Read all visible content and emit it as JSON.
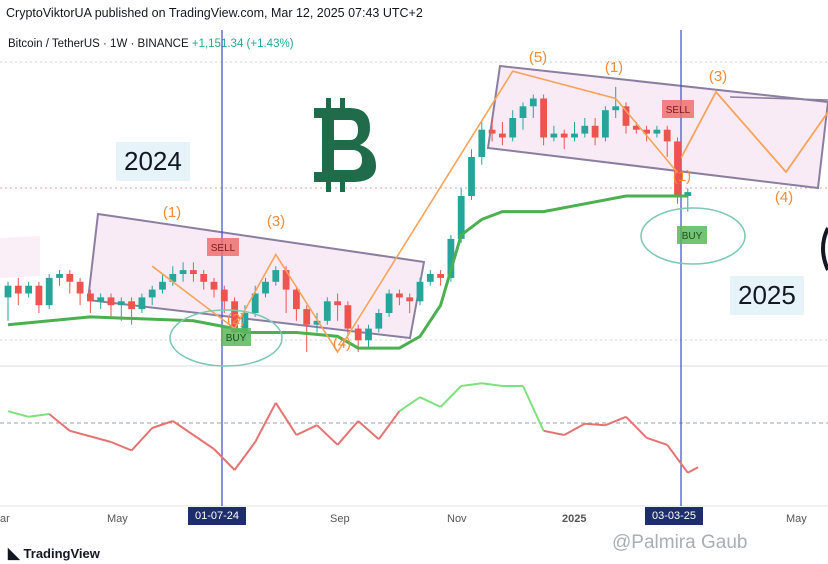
{
  "header": {
    "published": "CryptoViktorUA published on TradingView.com, Mar 12, 2025 07:43 UTC+2",
    "symbol": "Bitcoin / TetherUS · 1W · BINANCE",
    "change": "+1,151.34 (+1.43%)"
  },
  "annotations": {
    "year_2024": "2024",
    "year_2025": "2025",
    "sell_label": "SELL",
    "buy_label": "BUY",
    "wave_1": "(1)",
    "wave_2": "(2)",
    "wave_3": "(3)",
    "wave_4": "(4)",
    "wave_5": "(5)"
  },
  "time_axis": {
    "labels": [
      "ar",
      "May",
      "Sep",
      "Nov",
      "2025",
      "May"
    ],
    "marker_left": "01-07-24",
    "marker_right": "03-03-25"
  },
  "footer": {
    "brand": "TradingView",
    "watermark": "@Palmira Gaub"
  },
  "colors": {
    "up": "#26a69a",
    "down": "#ef5350",
    "trend": "#4caf50",
    "wave": "#f7a35c",
    "channel": "#9c8cb4",
    "marker": "#3b4bd1",
    "bitcoin": "#1f6b4a"
  },
  "chart_data": {
    "type": "candlestick",
    "price_units": "relative",
    "candles": [
      {
        "o": 54,
        "c": 57,
        "h": 58,
        "l": 48
      },
      {
        "o": 57,
        "c": 55,
        "h": 59,
        "l": 52
      },
      {
        "o": 55,
        "c": 57,
        "h": 58,
        "l": 54
      },
      {
        "o": 57,
        "c": 52,
        "h": 58,
        "l": 50
      },
      {
        "o": 52,
        "c": 59,
        "h": 60,
        "l": 51
      },
      {
        "o": 59,
        "c": 60,
        "h": 61,
        "l": 57
      },
      {
        "o": 60,
        "c": 58,
        "h": 61,
        "l": 55
      },
      {
        "o": 58,
        "c": 55,
        "h": 59,
        "l": 52
      },
      {
        "o": 55,
        "c": 53,
        "h": 56,
        "l": 50
      },
      {
        "o": 53,
        "c": 54,
        "h": 55,
        "l": 51
      },
      {
        "o": 54,
        "c": 52,
        "h": 55,
        "l": 49
      },
      {
        "o": 52,
        "c": 53,
        "h": 54,
        "l": 48
      },
      {
        "o": 53,
        "c": 51,
        "h": 54,
        "l": 47
      },
      {
        "o": 51,
        "c": 54,
        "h": 55,
        "l": 50
      },
      {
        "o": 54,
        "c": 56,
        "h": 57,
        "l": 52
      },
      {
        "o": 56,
        "c": 58,
        "h": 60,
        "l": 55
      },
      {
        "o": 58,
        "c": 60,
        "h": 62,
        "l": 57
      },
      {
        "o": 60,
        "c": 61,
        "h": 63,
        "l": 58
      },
      {
        "o": 61,
        "c": 60,
        "h": 63,
        "l": 58
      },
      {
        "o": 60,
        "c": 58,
        "h": 61,
        "l": 56
      },
      {
        "o": 58,
        "c": 56,
        "h": 59,
        "l": 54
      },
      {
        "o": 56,
        "c": 53,
        "h": 57,
        "l": 50
      },
      {
        "o": 53,
        "c": 45,
        "h": 54,
        "l": 42
      },
      {
        "o": 45,
        "c": 50,
        "h": 52,
        "l": 43
      },
      {
        "o": 50,
        "c": 55,
        "h": 57,
        "l": 49
      },
      {
        "o": 55,
        "c": 58,
        "h": 59,
        "l": 54
      },
      {
        "o": 58,
        "c": 61,
        "h": 62,
        "l": 57
      },
      {
        "o": 61,
        "c": 56,
        "h": 62,
        "l": 50
      },
      {
        "o": 56,
        "c": 51,
        "h": 57,
        "l": 48
      },
      {
        "o": 51,
        "c": 47,
        "h": 52,
        "l": 40
      },
      {
        "o": 47,
        "c": 48,
        "h": 50,
        "l": 45
      },
      {
        "o": 48,
        "c": 53,
        "h": 54,
        "l": 47
      },
      {
        "o": 53,
        "c": 52,
        "h": 55,
        "l": 48
      },
      {
        "o": 52,
        "c": 46,
        "h": 53,
        "l": 44
      },
      {
        "o": 46,
        "c": 43,
        "h": 47,
        "l": 40
      },
      {
        "o": 43,
        "c": 46,
        "h": 47,
        "l": 41
      },
      {
        "o": 46,
        "c": 50,
        "h": 51,
        "l": 45
      },
      {
        "o": 50,
        "c": 55,
        "h": 56,
        "l": 49
      },
      {
        "o": 55,
        "c": 54,
        "h": 56,
        "l": 52
      },
      {
        "o": 54,
        "c": 53,
        "h": 55,
        "l": 50
      },
      {
        "o": 53,
        "c": 58,
        "h": 59,
        "l": 52
      },
      {
        "o": 58,
        "c": 60,
        "h": 61,
        "l": 57
      },
      {
        "o": 60,
        "c": 59,
        "h": 61,
        "l": 57
      },
      {
        "o": 59,
        "c": 69,
        "h": 70,
        "l": 58
      },
      {
        "o": 69,
        "c": 80,
        "h": 82,
        "l": 68
      },
      {
        "o": 80,
        "c": 90,
        "h": 92,
        "l": 79
      },
      {
        "o": 90,
        "c": 97,
        "h": 99,
        "l": 88
      },
      {
        "o": 97,
        "c": 96,
        "h": 100,
        "l": 94
      },
      {
        "o": 96,
        "c": 95,
        "h": 99,
        "l": 93
      },
      {
        "o": 95,
        "c": 100,
        "h": 102,
        "l": 94
      },
      {
        "o": 100,
        "c": 103,
        "h": 104,
        "l": 97
      },
      {
        "o": 103,
        "c": 105,
        "h": 106,
        "l": 100
      },
      {
        "o": 105,
        "c": 95,
        "h": 106,
        "l": 93
      },
      {
        "o": 95,
        "c": 96,
        "h": 98,
        "l": 94
      },
      {
        "o": 96,
        "c": 95,
        "h": 97,
        "l": 92
      },
      {
        "o": 95,
        "c": 96,
        "h": 99,
        "l": 94
      },
      {
        "o": 96,
        "c": 98,
        "h": 100,
        "l": 95
      },
      {
        "o": 98,
        "c": 95,
        "h": 100,
        "l": 93
      },
      {
        "o": 95,
        "c": 102,
        "h": 103,
        "l": 94
      },
      {
        "o": 102,
        "c": 103,
        "h": 108,
        "l": 100
      },
      {
        "o": 103,
        "c": 98,
        "h": 104,
        "l": 96
      },
      {
        "o": 98,
        "c": 97,
        "h": 99,
        "l": 96
      },
      {
        "o": 97,
        "c": 96,
        "h": 98,
        "l": 94
      },
      {
        "o": 96,
        "c": 97,
        "h": 98,
        "l": 95
      },
      {
        "o": 97,
        "c": 94,
        "h": 98,
        "l": 90
      },
      {
        "o": 94,
        "c": 80,
        "h": 95,
        "l": 78
      },
      {
        "o": 80,
        "c": 81,
        "h": 82,
        "l": 76
      }
    ],
    "trend_line": [
      {
        "i": 0,
        "v": 47
      },
      {
        "i": 8,
        "v": 49
      },
      {
        "i": 18,
        "v": 48
      },
      {
        "i": 22,
        "v": 46
      },
      {
        "i": 23,
        "v": 45
      },
      {
        "i": 28,
        "v": 45
      },
      {
        "i": 32,
        "v": 44
      },
      {
        "i": 34,
        "v": 41
      },
      {
        "i": 38,
        "v": 41
      },
      {
        "i": 40,
        "v": 44
      },
      {
        "i": 42,
        "v": 52
      },
      {
        "i": 44,
        "v": 70
      },
      {
        "i": 46,
        "v": 74
      },
      {
        "i": 48,
        "v": 76
      },
      {
        "i": 52,
        "v": 76
      },
      {
        "i": 56,
        "v": 78
      },
      {
        "i": 60,
        "v": 80
      },
      {
        "i": 64,
        "v": 80
      },
      {
        "i": 66,
        "v": 80
      }
    ],
    "oscillator": [
      {
        "i": 0,
        "v": 62
      },
      {
        "i": 2,
        "v": 58
      },
      {
        "i": 4,
        "v": 60
      },
      {
        "i": 6,
        "v": 48
      },
      {
        "i": 8,
        "v": 44
      },
      {
        "i": 10,
        "v": 40
      },
      {
        "i": 12,
        "v": 34
      },
      {
        "i": 14,
        "v": 50
      },
      {
        "i": 16,
        "v": 55
      },
      {
        "i": 18,
        "v": 45
      },
      {
        "i": 20,
        "v": 35
      },
      {
        "i": 22,
        "v": 20
      },
      {
        "i": 24,
        "v": 40
      },
      {
        "i": 26,
        "v": 68
      },
      {
        "i": 28,
        "v": 45
      },
      {
        "i": 30,
        "v": 52
      },
      {
        "i": 32,
        "v": 38
      },
      {
        "i": 34,
        "v": 55
      },
      {
        "i": 36,
        "v": 42
      },
      {
        "i": 38,
        "v": 62
      },
      {
        "i": 40,
        "v": 72
      },
      {
        "i": 42,
        "v": 65
      },
      {
        "i": 44,
        "v": 80
      },
      {
        "i": 46,
        "v": 82
      },
      {
        "i": 48,
        "v": 80
      },
      {
        "i": 50,
        "v": 80
      },
      {
        "i": 52,
        "v": 48
      },
      {
        "i": 54,
        "v": 45
      },
      {
        "i": 56,
        "v": 53
      },
      {
        "i": 58,
        "v": 52
      },
      {
        "i": 60,
        "v": 58
      },
      {
        "i": 62,
        "v": 43
      },
      {
        "i": 64,
        "v": 38
      },
      {
        "i": 66,
        "v": 18
      },
      {
        "i": 67,
        "v": 22
      }
    ],
    "oscillator_threshold": 57
  }
}
